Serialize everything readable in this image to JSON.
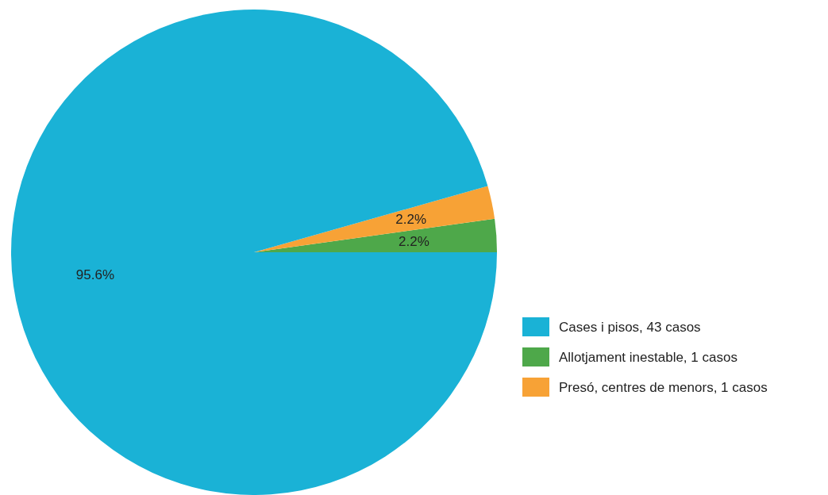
{
  "chart_data": {
    "type": "pie",
    "categories": [
      "Cases i pisos, 43 casos",
      "Allotjament inestable, 1 casos",
      "Presó, centres de menors, 1 casos"
    ],
    "values": [
      95.6,
      2.2,
      2.2
    ],
    "colors": [
      "#1ab2d6",
      "#4ea84a",
      "#f7a236"
    ],
    "value_labels": [
      "95.6%",
      "2.2%",
      "2.2%"
    ],
    "legend": "right"
  }
}
